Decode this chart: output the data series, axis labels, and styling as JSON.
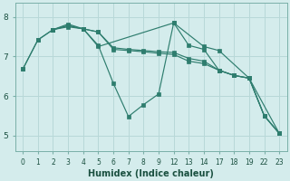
{
  "xlabel": "Humidex (Indice chaleur)",
  "bg_color": "#d4ecec",
  "grid_color": "#b8d8d8",
  "line_color": "#2e7d6e",
  "xtick_labels": [
    "0",
    "1",
    "2",
    "3",
    "4",
    "5",
    "6",
    "7",
    "8",
    "9",
    "12",
    "13",
    "14",
    "17",
    "18",
    "19",
    "22",
    "23"
  ],
  "yticks": [
    5,
    6,
    7,
    8
  ],
  "ylim": [
    4.6,
    8.35
  ],
  "lines": [
    {
      "xi": [
        0,
        1,
        2,
        3,
        4,
        5,
        10,
        12,
        13,
        15,
        17
      ],
      "y": [
        6.68,
        7.42,
        7.68,
        7.78,
        7.7,
        7.25,
        7.85,
        7.25,
        7.15,
        6.45,
        5.05
      ]
    },
    {
      "xi": [
        0,
        1,
        2,
        3,
        4,
        5,
        6,
        7,
        8,
        9,
        10,
        11,
        12,
        13,
        14,
        15,
        16,
        17
      ],
      "y": [
        6.68,
        7.42,
        7.68,
        7.78,
        7.7,
        7.62,
        7.22,
        7.18,
        7.15,
        7.12,
        7.1,
        6.95,
        6.88,
        6.65,
        6.52,
        6.45,
        5.5,
        5.05
      ]
    },
    {
      "xi": [
        2,
        3,
        4,
        5,
        6,
        7,
        8,
        9,
        10,
        11,
        12,
        13,
        14,
        15,
        16,
        17
      ],
      "y": [
        7.68,
        7.82,
        7.7,
        7.28,
        6.32,
        5.48,
        5.78,
        6.05,
        7.85,
        7.28,
        7.18,
        6.65,
        6.52,
        6.45,
        5.5,
        5.05
      ]
    },
    {
      "xi": [
        2,
        3,
        4,
        5,
        6,
        7,
        8,
        9,
        10,
        11,
        12,
        13,
        14,
        15,
        16,
        17
      ],
      "y": [
        7.68,
        7.75,
        7.7,
        7.62,
        7.18,
        7.15,
        7.12,
        7.08,
        7.05,
        6.88,
        6.82,
        6.65,
        6.52,
        6.45,
        5.5,
        5.05
      ]
    }
  ]
}
